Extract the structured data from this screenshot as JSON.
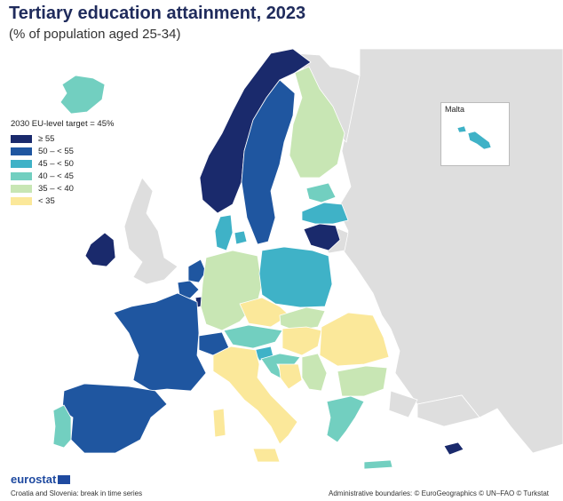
{
  "title": "Tertiary education attainment, 2023",
  "subtitle": "(% of population aged 25-34)",
  "legend": {
    "title": "2030 EU-level target = 45%",
    "classes": [
      {
        "label": "≥ 55",
        "color": "#1a2a6c"
      },
      {
        "label": "50 – < 55",
        "color": "#1f56a0"
      },
      {
        "label": "45 – < 50",
        "color": "#3fb2c7"
      },
      {
        "label": "40 – < 45",
        "color": "#72cfc0"
      },
      {
        "label": "35 – < 40",
        "color": "#c8e6b4"
      },
      {
        "label": "< 35",
        "color": "#fbe89a"
      }
    ]
  },
  "non_reporting_color": "#dedede",
  "sea_color": "#ffffff",
  "inset": {
    "label": "Malta",
    "class": "45 – < 50"
  },
  "regions": {
    "Norway": "≥ 55",
    "Ireland": "≥ 55",
    "Lithuania": "≥ 55",
    "Luxembourg": "≥ 55",
    "Cyprus": "≥ 55",
    "Sweden": "50 – < 55",
    "France": "50 – < 55",
    "Spain": "50 – < 55",
    "Belgium": "50 – < 55",
    "Netherlands": "50 – < 55",
    "Switzerland": "50 – < 55",
    "Poland": "45 – < 50",
    "Slovenia": "45 – < 50",
    "Latvia": "45 – < 50",
    "Denmark": "45 – < 50",
    "Malta": "45 – < 50",
    "Iceland": "40 – < 45",
    "Portugal": "40 – < 45",
    "Estonia": "40 – < 45",
    "Austria": "40 – < 45",
    "Greece": "40 – < 45",
    "Croatia": "40 – < 45",
    "Finland": "35 – < 40",
    "Germany": "35 – < 40",
    "Slovakia": "35 – < 40",
    "Bulgaria": "35 – < 40",
    "Serbia": "35 – < 40",
    "Italy": "< 35",
    "Romania": "< 35",
    "Hungary": "< 35",
    "Czechia": "< 35",
    "Bosnia and Herzegovina": "< 35"
  },
  "brand": {
    "name": "eurostat"
  },
  "footnote": "Croatia and Slovenia: break in time series",
  "credits": "Administrative boundaries: © EuroGeographics © UN–FAO © Turkstat"
}
